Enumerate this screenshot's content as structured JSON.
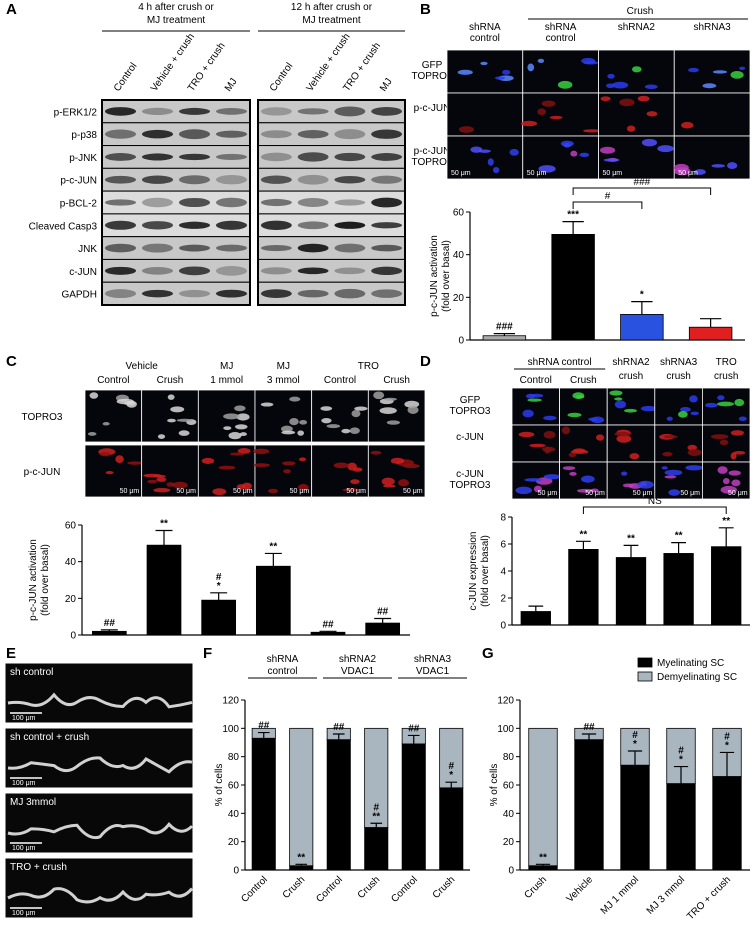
{
  "panel_labels": [
    "A",
    "B",
    "C",
    "D",
    "E",
    "F",
    "G"
  ],
  "panel_a": {
    "headers": [
      [
        "4 h after crush or",
        "MJ treatment"
      ],
      [
        "12 h after crush or",
        "MJ treatment"
      ]
    ],
    "lanes": [
      "Control",
      "Vehicle + crush",
      "TRO + crush",
      "MJ"
    ],
    "rows": [
      "p-ERK1/2",
      "p-p38",
      "p-JNK",
      "p-c-JUN",
      "p-BCL-2",
      "Cleaved Casp3",
      "JNK",
      "c-JUN",
      "GAPDH"
    ]
  },
  "panel_b": {
    "group": "Crush",
    "columns": [
      [
        "shRNA",
        "control"
      ],
      [
        "shRNA",
        "control"
      ],
      [
        "shRNA2"
      ],
      [
        "shRNA3"
      ]
    ],
    "rows": [
      [
        "GFP",
        "TOPRO3"
      ],
      [
        "p-c-JUN"
      ],
      [
        "p-c-JUN",
        "TOPRO3"
      ]
    ],
    "scale_bar": "50 μm"
  },
  "panel_c": {
    "groups": [
      [
        "Vehicle"
      ],
      [
        "MJ",
        "1 mmol"
      ],
      [
        "MJ",
        "3 mmol"
      ],
      [
        "TRO"
      ]
    ],
    "subcolumns": [
      "Control",
      "Crush",
      "Control",
      "Crush"
    ],
    "rows": [
      "TOPRO3",
      "p-c-JUN"
    ],
    "scale_bar": "50 μm"
  },
  "panel_d": {
    "groups": [
      [
        "shRNA control"
      ],
      [
        "shRNA2",
        "crush"
      ],
      [
        "shRNA3",
        "crush"
      ],
      [
        "TRO",
        "crush"
      ]
    ],
    "subcolumns": [
      "Control",
      "Crush"
    ],
    "rows": [
      [
        "GFP",
        "TOPRO3"
      ],
      [
        "c-JUN"
      ],
      [
        "c-JUN",
        "TOPRO3"
      ]
    ],
    "scale_bar": "50 μm"
  },
  "panel_e": {
    "images": [
      "sh control",
      "sh control + crush",
      "MJ 3mmol",
      "TRO + crush"
    ],
    "scale_bar": "100 μm"
  },
  "panel_f": {
    "groups": [
      [
        "shRNA",
        "control"
      ],
      [
        "shRNA2",
        "VDAC1"
      ],
      [
        "shRNA3",
        "VDAC1"
      ]
    ]
  },
  "chart_data": [
    {
      "type": "bar",
      "y_label": [
        "p-c-JUN activation",
        "(fold over basal)"
      ],
      "ylim": [
        0,
        60
      ],
      "yticks": [
        0,
        20,
        40,
        60
      ],
      "values": [
        2,
        49.5,
        12,
        6
      ],
      "errors": [
        1,
        6,
        6,
        4
      ],
      "colors": [
        "#aaaaaa",
        "#000000",
        "#2a52e0",
        "#e02020"
      ],
      "annotations": [
        [
          "###"
        ],
        [
          "***"
        ],
        [
          "*"
        ],
        []
      ],
      "brackets": [
        "#",
        "###"
      ]
    },
    {
      "type": "bar",
      "y_label": [
        "p-c-JUN activation",
        "(fold over basal)"
      ],
      "ylim": [
        0,
        60
      ],
      "yticks": [
        0,
        20,
        40,
        60
      ],
      "values": [
        2,
        49,
        19,
        37.5,
        1.5,
        6.5
      ],
      "errors": [
        0.8,
        8,
        4,
        7,
        0.5,
        2.5
      ],
      "color": "#000000",
      "annotations": [
        [
          "##"
        ],
        [
          "**"
        ],
        [
          "#",
          "*"
        ],
        [
          "**"
        ],
        [
          "##"
        ],
        [
          "##"
        ]
      ]
    },
    {
      "type": "bar",
      "y_label": [
        "c-JUN expression",
        "(fold over basal)"
      ],
      "ylim": [
        0,
        8
      ],
      "yticks": [
        0,
        2,
        4,
        6,
        8
      ],
      "values": [
        1,
        5.6,
        5,
        5.3,
        5.8
      ],
      "errors": [
        0.4,
        0.6,
        0.9,
        0.8,
        1.4
      ],
      "color": "#000000",
      "annotations": [
        [],
        [
          "**"
        ],
        [
          "**"
        ],
        [
          "**"
        ],
        [
          "**"
        ]
      ],
      "brackets": [
        "NS"
      ]
    },
    {
      "type": "stacked_bar",
      "y_label": "% of cells",
      "categories": [
        "Control",
        "Crush",
        "Control",
        "Crush",
        "Control",
        "Crush"
      ],
      "ylim": [
        0,
        120
      ],
      "yticks": [
        0,
        20,
        40,
        60,
        80,
        100,
        120
      ],
      "series": [
        {
          "color": "#000000",
          "values": [
            93,
            3,
            92,
            30,
            89,
            58
          ],
          "errors": [
            4,
            1,
            4,
            3,
            6,
            4
          ]
        },
        {
          "color": "#a9b6bf",
          "values": [
            7,
            97,
            8,
            70,
            11,
            42
          ]
        }
      ],
      "annotations": [
        [
          "##"
        ],
        [
          "**"
        ],
        [
          "##"
        ],
        [
          "#",
          "**"
        ],
        [
          "##"
        ],
        [
          "#",
          "*"
        ]
      ]
    },
    {
      "type": "stacked_bar",
      "y_label": "% of cells",
      "categories": [
        "Crush",
        "Vehicle",
        "MJ 1 mmol",
        "MJ 3 mmol",
        "TRO + crush"
      ],
      "ylim": [
        0,
        120
      ],
      "yticks": [
        0,
        20,
        40,
        60,
        80,
        100,
        120
      ],
      "series": [
        {
          "name": "Myelinating SC",
          "color": "#000000",
          "values": [
            3,
            92,
            74,
            61,
            66
          ],
          "errors": [
            1,
            4,
            10,
            12,
            17
          ]
        },
        {
          "name": "Demyelinating SC",
          "color": "#a9b6bf",
          "values": [
            97,
            8,
            26,
            39,
            34
          ]
        }
      ],
      "annotations": [
        [
          "**"
        ],
        [
          "##"
        ],
        [
          "#",
          "*"
        ],
        [
          "#",
          "*"
        ],
        [
          "#",
          "*"
        ]
      ],
      "legend": "top-right"
    }
  ]
}
